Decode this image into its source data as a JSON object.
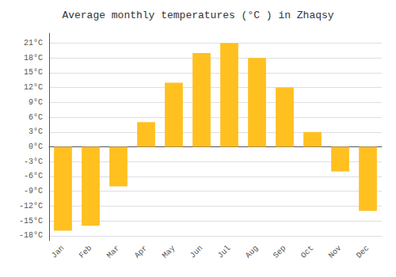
{
  "chart_data": {
    "type": "bar",
    "title": "Average monthly temperatures (°C ) in Zhaqsy",
    "categories": [
      "Jan",
      "Feb",
      "Mar",
      "Apr",
      "May",
      "Jun",
      "Jul",
      "Aug",
      "Sep",
      "Oct",
      "Nov",
      "Dec"
    ],
    "values": [
      -17,
      -16,
      -8,
      5,
      13,
      19,
      21,
      18,
      12,
      3,
      -5,
      -13
    ],
    "color": "#FFC020",
    "ylim": [
      -19,
      23
    ],
    "yticks": [
      {
        "value": -18,
        "label": "-18°C"
      },
      {
        "value": -15,
        "label": "-15°C"
      },
      {
        "value": -12,
        "label": "-12°C"
      },
      {
        "value": -9,
        "label": "-9°C"
      },
      {
        "value": -6,
        "label": "-6°C"
      },
      {
        "value": -3,
        "label": "-3°C"
      },
      {
        "value": 0,
        "label": "0°C"
      },
      {
        "value": 3,
        "label": "3°C"
      },
      {
        "value": 6,
        "label": "6°C"
      },
      {
        "value": 9,
        "label": "9°C"
      },
      {
        "value": 12,
        "label": "12°C"
      },
      {
        "value": 15,
        "label": "15°C"
      },
      {
        "value": 18,
        "label": "18°C"
      },
      {
        "value": 21,
        "label": "21°C"
      }
    ],
    "grid": true
  }
}
